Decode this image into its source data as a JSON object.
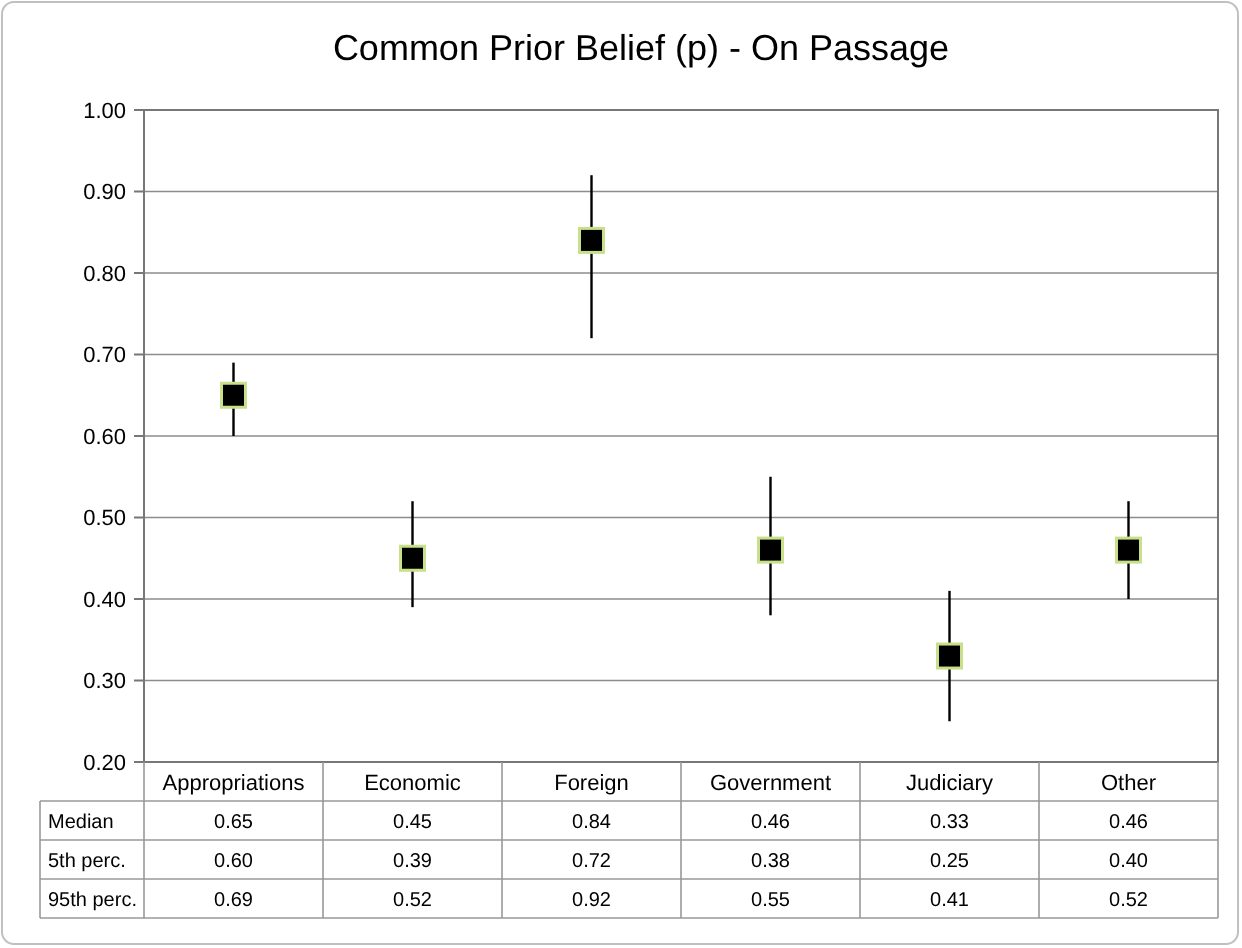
{
  "chart_data": {
    "type": "scatter",
    "title": "Common Prior Belief (p) - On Passage",
    "categories": [
      "Appropriations",
      "Economic",
      "Foreign",
      "Government",
      "Judiciary",
      "Other"
    ],
    "series": [
      {
        "name": "Median",
        "color": "#000000",
        "values": [
          0.65,
          0.45,
          0.84,
          0.46,
          0.33,
          0.46
        ],
        "errors": [
          [
            0.6,
            0.69
          ],
          [
            0.39,
            0.52
          ],
          [
            0.72,
            0.92
          ],
          [
            0.38,
            0.55
          ],
          [
            0.25,
            0.41
          ],
          [
            0.4,
            0.52
          ]
        ]
      }
    ],
    "annotations": [
      "5th perc.",
      "0.60",
      "0.39",
      "0.72",
      "0.38",
      "0.25",
      "0.40",
      "95th perc.",
      "0.69",
      "0.52",
      "0.92",
      "0.55",
      "0.41",
      "0.52"
    ],
    "ylim": [
      0.2,
      1.0
    ],
    "yticks": [
      {
        "value": 0.2,
        "label": "0.20"
      },
      {
        "value": 0.3,
        "label": "0.30"
      },
      {
        "value": 0.4,
        "label": "0.40"
      },
      {
        "value": 0.5,
        "label": "0.50"
      },
      {
        "value": 0.6,
        "label": "0.60"
      },
      {
        "value": 0.7,
        "label": "0.70"
      },
      {
        "value": 0.8,
        "label": "0.80"
      },
      {
        "value": 0.9,
        "label": "0.90"
      },
      {
        "value": 1.0,
        "label": "1.00"
      }
    ],
    "grid": "y",
    "marker": "square",
    "data_labels": true
  }
}
